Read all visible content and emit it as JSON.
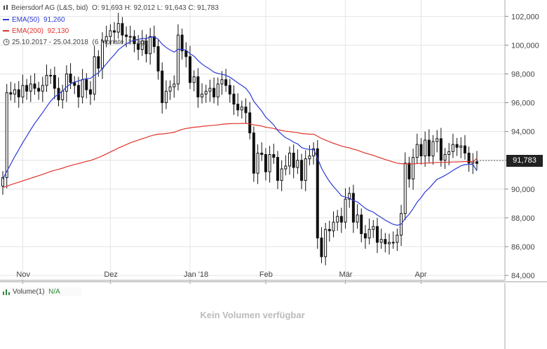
{
  "header": {
    "instrument": "Beiersdorf AG (L&S, bid)",
    "ohlc": "O: 91,693  H: 92,012  L: 91,643  C: 91,783",
    "ema50_label": "EMA(50)",
    "ema50_value": "91,260",
    "ema200_label": "EMA(200)",
    "ema200_value": "92,130",
    "period": "25.10.2017 - 25.04.2018",
    "period_detail": "(6 Monate, 1 Tag)"
  },
  "volume": {
    "label": "Volume(1)",
    "value": "N/A",
    "empty_message": "Kein Volumen verfügbar"
  },
  "price_tag": "91,783",
  "colors": {
    "ema50": "#2b3bd6",
    "ema200": "#e0332b",
    "candle": "#111111",
    "grid": "#e4e4e4",
    "volume_icon": "#2e8b3e"
  },
  "icons": [
    "clock-icon",
    "volume-bars-icon"
  ],
  "chart_data": {
    "type": "candlestick",
    "x_tick_labels": [
      "Nov",
      "Dez",
      "Jan '18",
      "Feb",
      "Mär",
      "Apr"
    ],
    "y_tick_labels": [
      "84,000",
      "86,000",
      "88,000",
      "90,000",
      "92,000",
      "94,000",
      "96,000",
      "98,000",
      "100,000",
      "102,000"
    ],
    "ylim": [
      84,
      102.6
    ],
    "grid": true,
    "close": [
      90.8,
      96.7,
      96.6,
      96.9,
      96.4,
      97.2,
      96.8,
      97.3,
      97.0,
      96.8,
      97.2,
      97.9,
      97.9,
      97.0,
      96.2,
      96.8,
      98.0,
      97.4,
      97.2,
      96.4,
      97.6,
      96.9,
      96.6,
      99.2,
      98.4,
      100.3,
      100.6,
      101.0,
      100.9,
      101.5,
      100.7,
      100.6,
      100.6,
      100.1,
      99.7,
      100.3,
      99.4,
      100.6,
      99.9,
      98.2,
      96.0,
      96.8,
      97.1,
      97.3,
      100.7,
      99.6,
      99.2,
      97.4,
      97.8,
      96.4,
      96.6,
      96.8,
      97.0,
      96.4,
      97.3,
      97.6,
      97.2,
      96.6,
      95.9,
      95.5,
      95.7,
      95.3,
      93.9,
      91.1,
      92.5,
      92.4,
      91.2,
      92.4,
      92.2,
      90.6,
      91.4,
      91.6,
      92.5,
      91.5,
      92.0,
      90.6,
      92.1,
      92.3,
      92.8,
      86.6,
      85.3,
      87.2,
      87.1,
      87.7,
      88.1,
      87.7,
      89.3,
      89.7,
      87.7,
      88.2,
      86.9,
      86.6,
      87.2,
      87.4,
      86.3,
      86.5,
      86.2,
      86.3,
      86.3,
      86.8,
      88.3,
      91.8,
      90.7,
      92.2,
      93.1,
      92.3,
      93.4,
      92.3,
      93.3,
      93.5,
      92.0,
      92.4,
      92.6,
      93.1,
      92.9,
      93.0,
      92.5,
      91.8,
      91.9,
      91.783
    ],
    "series": [
      {
        "name": "EMA(50)",
        "values": [
          90.7,
          91.23,
          91.74,
          92.26,
          92.73,
          93.22,
          93.67,
          94.13,
          94.55,
          94.93,
          95.31,
          95.72,
          96.11,
          96.4,
          96.59,
          96.81,
          97.1,
          97.3,
          97.45,
          97.5,
          97.62,
          97.67,
          97.69,
          97.92,
          98.06,
          98.38,
          98.7,
          99.04,
          99.34,
          99.67,
          99.89,
          100.08,
          100.25,
          100.34,
          100.38,
          100.47,
          100.46,
          100.55,
          100.58,
          100.41,
          100.07,
          99.84,
          99.66,
          99.52,
          99.71,
          99.7,
          99.66,
          99.4,
          99.23,
          98.93,
          98.69,
          98.49,
          98.33,
          98.12,
          98.03,
          97.98,
          97.9,
          97.77,
          97.58,
          97.37,
          97.2,
          97.0,
          96.65,
          96.1,
          95.75,
          95.42,
          95.0,
          94.74,
          94.46,
          94.07,
          93.8,
          93.57,
          93.44,
          93.25,
          93.14,
          92.88,
          92.8,
          92.75,
          92.76,
          92.15,
          91.45,
          90.97,
          90.53,
          90.17,
          89.86,
          89.53,
          89.44,
          89.36,
          89.2,
          89.11,
          88.89,
          88.66,
          88.51,
          88.4,
          88.19,
          88.02,
          87.84,
          87.69,
          87.55,
          87.48,
          87.56,
          87.96,
          88.24,
          88.64,
          89.09,
          89.41,
          89.8,
          90.05,
          90.37,
          90.68,
          90.8,
          90.95,
          91.11,
          91.3,
          91.46,
          91.61,
          91.7,
          91.71,
          91.72,
          91.26
        ]
      },
      {
        "name": "EMA(200)",
        "values": [
          90.1,
          90.2,
          90.3,
          90.39,
          90.48,
          90.57,
          90.66,
          90.75,
          90.84,
          90.93,
          91.02,
          91.12,
          91.22,
          91.3,
          91.37,
          91.45,
          91.55,
          91.63,
          91.71,
          91.77,
          91.85,
          91.92,
          91.98,
          92.09,
          92.18,
          92.31,
          92.44,
          92.58,
          92.71,
          92.85,
          92.97,
          93.09,
          93.21,
          93.31,
          93.4,
          93.5,
          93.58,
          93.68,
          93.76,
          93.81,
          93.83,
          93.86,
          93.9,
          93.94,
          94.05,
          94.14,
          94.21,
          94.25,
          94.3,
          94.32,
          94.35,
          94.38,
          94.41,
          94.43,
          94.46,
          94.5,
          94.52,
          94.54,
          94.55,
          94.55,
          94.56,
          94.56,
          94.53,
          94.46,
          94.42,
          94.38,
          94.3,
          94.26,
          94.21,
          94.13,
          94.07,
          94.02,
          93.99,
          93.95,
          93.92,
          93.86,
          93.84,
          93.81,
          93.81,
          93.67,
          93.52,
          93.4,
          93.29,
          93.18,
          93.09,
          92.99,
          92.92,
          92.86,
          92.77,
          92.7,
          92.6,
          92.5,
          92.42,
          92.34,
          92.24,
          92.15,
          92.05,
          91.97,
          91.88,
          91.8,
          91.76,
          91.76,
          91.75,
          91.75,
          91.77,
          91.78,
          91.8,
          91.81,
          91.83,
          91.85,
          91.85,
          91.86,
          91.87,
          91.88,
          91.89,
          91.9,
          91.91,
          91.91,
          91.9,
          92.13
        ]
      }
    ]
  }
}
